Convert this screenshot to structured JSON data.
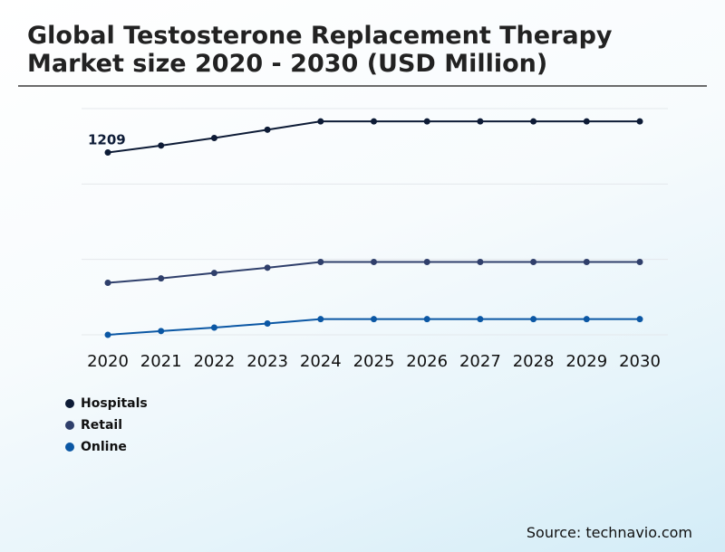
{
  "title": "Global Testosterone Replacement Therapy Market size 2020 - 2030 (USD Million)",
  "source": "Source: technavio.com",
  "colors": {
    "hospitals": "#0d1b36",
    "retail": "#2f3f6b",
    "online": "#0b57a4",
    "grid": "#e4e8ec"
  },
  "chart_data": {
    "type": "line",
    "categories": [
      "2020",
      "2021",
      "2022",
      "2023",
      "2024",
      "2025",
      "2026",
      "2027",
      "2028",
      "2029",
      "2030"
    ],
    "ylim": [
      0,
      1800
    ],
    "grid": true,
    "legend_position": "bottom-left",
    "data_labels": [
      {
        "series": "Hospitals",
        "category": "2020",
        "text": "1209"
      }
    ],
    "series": [
      {
        "name": "Hospitals",
        "color": "#0d1b36",
        "values": [
          1209,
          1255,
          1305,
          1360,
          1415,
          1415,
          1415,
          1415,
          1415,
          1415,
          1415
        ]
      },
      {
        "name": "Retail",
        "color": "#2f3f6b",
        "values": [
          345,
          374,
          410,
          445,
          483,
          483,
          483,
          483,
          483,
          483,
          483
        ]
      },
      {
        "name": "Online",
        "color": "#0b57a4",
        "values": [
          0,
          25,
          48,
          75,
          104,
          104,
          104,
          104,
          104,
          104,
          104
        ]
      }
    ]
  }
}
